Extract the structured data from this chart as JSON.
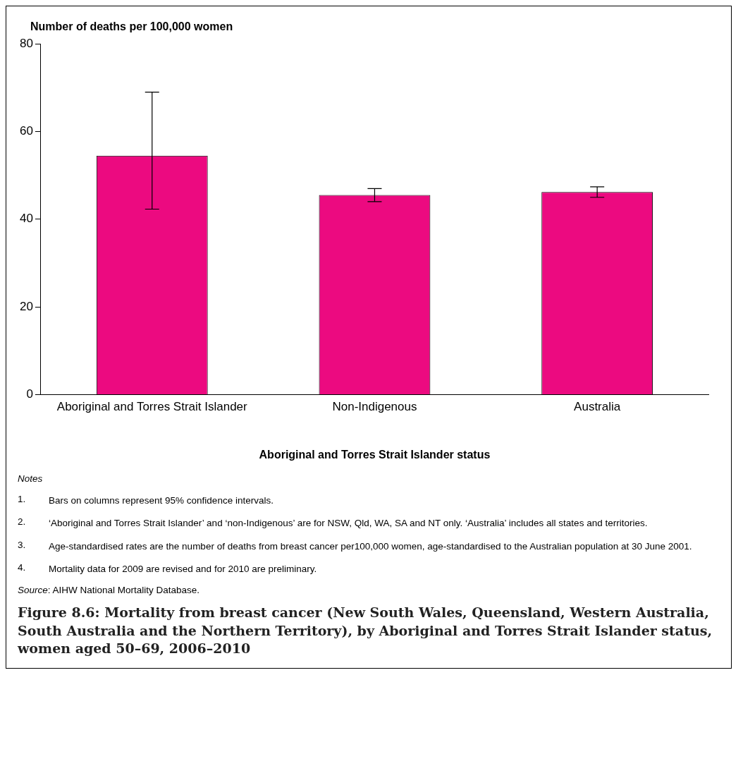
{
  "chart_data": {
    "type": "bar",
    "title": "Figure 8.6: Mortality from breast cancer (New South Wales, Queensland, Western Australia, South Australia and the Northern Territory), by Aboriginal and Torres Strait Islander status, women aged 50–69, 2006–2010",
    "ylabel": "Number of deaths per 100,000 women",
    "xlabel": "Aboriginal and Torres Strait Islander status",
    "categories": [
      "Aboriginal and Torres Strait Islander",
      "Non-Indigenous",
      "Australia"
    ],
    "values": [
      54.5,
      45.5,
      46.2
    ],
    "errors": [
      [
        42.3,
        69.0
      ],
      [
        44.0,
        47.0
      ],
      [
        45.0,
        47.4
      ]
    ],
    "color": "#ec0a80",
    "ylim": [
      0,
      80
    ],
    "yticks": [
      0,
      20,
      40,
      60,
      80
    ],
    "grid": false,
    "legend": false,
    "annotations": [
      "Notes",
      "1. Bars on columns represent 95% confidence intervals.",
      "2. ‘Aboriginal and Torres Strait Islander’ and ‘non-Indigenous’ are for NSW, Qld, WA, SA and NT only. ‘Australia’ includes all states and territories.",
      "3. Age-standardised rates are the number of deaths from breast cancer per100,000 women, age-standardised to the Australian population at 30 June 2001.",
      "4. Mortality data for 2009 are revised and for 2010 are preliminary.",
      "Source: AIHW National Mortality Database."
    ]
  }
}
